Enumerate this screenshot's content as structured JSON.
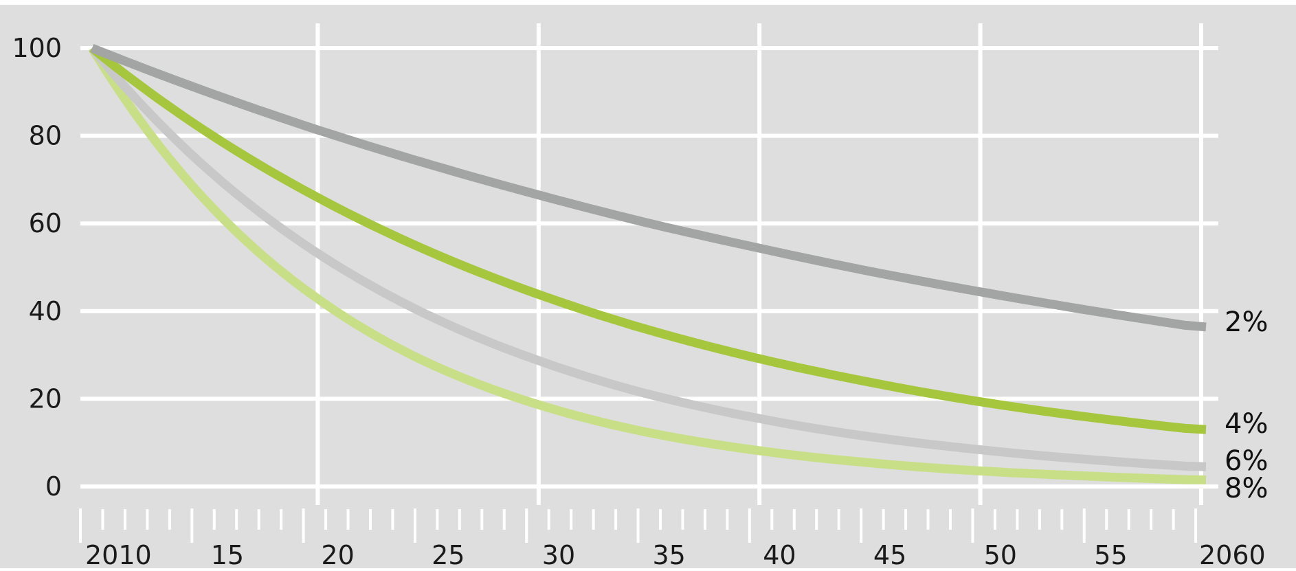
{
  "chart_data": {
    "type": "line",
    "title": "",
    "xlabel": "",
    "ylabel": "",
    "xlim": [
      2010,
      2060
    ],
    "ylim": [
      0,
      100
    ],
    "y_ticks": [
      0,
      20,
      40,
      60,
      80,
      100
    ],
    "x_tick_labels": [
      {
        "year": 2010,
        "label": "2010"
      },
      {
        "year": 2015,
        "label": "15"
      },
      {
        "year": 2020,
        "label": "20"
      },
      {
        "year": 2025,
        "label": "25"
      },
      {
        "year": 2030,
        "label": "30"
      },
      {
        "year": 2035,
        "label": "35"
      },
      {
        "year": 2040,
        "label": "40"
      },
      {
        "year": 2045,
        "label": "45"
      },
      {
        "year": 2050,
        "label": "50"
      },
      {
        "year": 2055,
        "label": "55"
      },
      {
        "year": 2060,
        "label": "2060"
      }
    ],
    "vertical_gridlines": [
      2020,
      2030,
      2040,
      2050,
      2060
    ],
    "grid": true,
    "background": "#dedede",
    "x": [
      2010,
      2015,
      2020,
      2025,
      2030,
      2035,
      2040,
      2045,
      2050,
      2055,
      2060
    ],
    "series": [
      {
        "name": "2%",
        "color": "#a3a4a4",
        "values": [
          100,
          90.4,
          81.7,
          73.9,
          66.8,
          60.3,
          54.6,
          49.3,
          44.6,
          40.3,
          36.4
        ]
      },
      {
        "name": "4%",
        "color": "#a6c73d",
        "values": [
          100,
          81.5,
          66.5,
          54.2,
          44.2,
          36.0,
          29.4,
          24.0,
          19.5,
          15.9,
          13.0
        ]
      },
      {
        "name": "6%",
        "color": "#c8c8c8",
        "values": [
          100,
          73.4,
          53.9,
          39.6,
          29.1,
          21.3,
          15.7,
          11.5,
          8.5,
          6.2,
          4.5
        ]
      },
      {
        "name": "8%",
        "color": "#c8df87",
        "values": [
          100,
          66.0,
          43.6,
          28.7,
          19.0,
          12.5,
          8.3,
          5.5,
          3.6,
          2.4,
          1.5
        ]
      }
    ]
  }
}
